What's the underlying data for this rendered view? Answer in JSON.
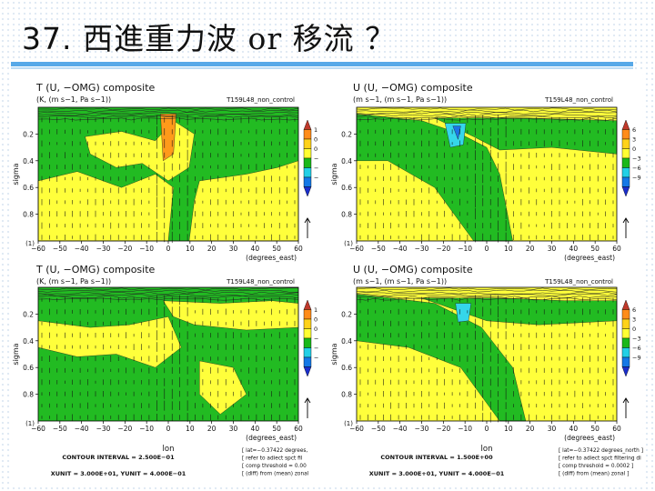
{
  "slide": {
    "title_num": "37.",
    "title_a": "西進重力波",
    "title_or": "or",
    "title_b": "移流 ？"
  },
  "chart_data": [
    {
      "type": "heatmap",
      "title": "T (U, −OMG) composite",
      "subtitle": "(K, (m s−1, Pa s−1))",
      "run": "T159L48_non_control",
      "xlabel": "(degrees_east)",
      "ylabel": "sigma",
      "x_ticks": [
        "−60",
        "−50",
        "−40",
        "−30",
        "−20",
        "−10",
        "0",
        "10",
        "20",
        "30",
        "40",
        "50",
        "60"
      ],
      "y_ticks": [
        "0.2",
        "0.4",
        "0.6",
        "0.8"
      ],
      "xlim": [
        -60,
        60
      ],
      "ylim": [
        1.0,
        0.0
      ],
      "colorbar": {
        "labels": [
          "1",
          "0",
          "0",
          "−",
          "−",
          "−"
        ],
        "colors": [
          "#c0392b",
          "#ff8c1a",
          "#ffd21a",
          "#ffff33",
          "#1ab81a",
          "#22d0e6",
          "#1478e6",
          "#1a2ecc"
        ]
      },
      "unit_ref": "(1)",
      "grid": "off",
      "legend": "right"
    },
    {
      "type": "heatmap",
      "title": "U (U, −OMG) composite",
      "subtitle": "(m s−1, (m s−1, Pa s−1))",
      "run": "T159L48_non_control",
      "xlabel": "(degrees_east)",
      "ylabel": "sigma",
      "x_ticks": [
        "−60",
        "−50",
        "−40",
        "−30",
        "−20",
        "−10",
        "0",
        "10",
        "20",
        "30",
        "40",
        "50",
        "60"
      ],
      "y_ticks": [
        "0.2",
        "0.4",
        "0.6",
        "0.8"
      ],
      "xlim": [
        -60,
        60
      ],
      "ylim": [
        1.0,
        0.0
      ],
      "colorbar": {
        "labels": [
          "6",
          "3",
          "0",
          "−3",
          "−6",
          "−9"
        ],
        "colors": [
          "#c0392b",
          "#ff8c1a",
          "#ffd21a",
          "#ffff33",
          "#1ab81a",
          "#22d0e6",
          "#1478e6",
          "#1a2ecc"
        ]
      },
      "unit_ref": "(1)",
      "grid": "off",
      "legend": "right"
    },
    {
      "type": "heatmap",
      "title": "T (U, −OMG) composite",
      "subtitle": "(K, (m s−1, Pa s−1))",
      "run": "T159L48_non_control",
      "xlabel": "(degrees_east)",
      "ylabel": "sigma",
      "x_ticks": [
        "−60",
        "−50",
        "−40",
        "−30",
        "−20",
        "−10",
        "0",
        "10",
        "20",
        "30",
        "40",
        "50",
        "60"
      ],
      "y_ticks": [
        "0.2",
        "0.4",
        "0.6",
        "0.8"
      ],
      "xlim": [
        -60,
        60
      ],
      "ylim": [
        1.0,
        0.0
      ],
      "colorbar": {
        "labels": [
          "1",
          "0",
          "0",
          "−",
          "−",
          "−"
        ],
        "colors": [
          "#c0392b",
          "#ff8c1a",
          "#ffd21a",
          "#ffff33",
          "#1ab81a",
          "#22d0e6",
          "#1478e6",
          "#1a2ecc"
        ]
      },
      "unit_ref": "(1)",
      "lon_label": "lon",
      "grid": "off",
      "legend": "right"
    },
    {
      "type": "heatmap",
      "title": "U (U, −OMG) composite",
      "subtitle": "(m s−1, (m s−1, Pa s−1))",
      "run": "T159L48_non_control",
      "xlabel": "(degrees_east)",
      "ylabel": "sigma",
      "x_ticks": [
        "−60",
        "−50",
        "−40",
        "−30",
        "−20",
        "−10",
        "0",
        "10",
        "20",
        "30",
        "40",
        "50",
        "60"
      ],
      "y_ticks": [
        "0.2",
        "0.4",
        "0.6",
        "0.8"
      ],
      "xlim": [
        -60,
        60
      ],
      "ylim": [
        1.0,
        0.0
      ],
      "colorbar": {
        "labels": [
          "6",
          "3",
          "0",
          "−3",
          "−6",
          "−9"
        ],
        "colors": [
          "#c0392b",
          "#ff8c1a",
          "#ffd21a",
          "#ffff33",
          "#1ab81a",
          "#22d0e6",
          "#1478e6",
          "#1a2ecc"
        ]
      },
      "unit_ref": "(1)",
      "lon_label": "lon",
      "grid": "off",
      "legend": "right"
    }
  ],
  "footers": [
    {
      "contour_interval": "CONTOUR INTERVAL = 2.500E−01",
      "units": "XUNIT = 3.000E+01, YUNIT = 4.000E−01",
      "notes": [
        "[ lat=−0.37422 degrees,",
        "[ refer to adiect spct fil",
        "[ comp threshold = 0.00",
        "[ (diff) from (mean) zonal"
      ]
    },
    {
      "contour_interval": "CONTOUR INTERVAL = 1.500E+00",
      "units": "XUNIT = 3.000E+01, YUNIT = 4.000E−01",
      "notes": [
        "[ lat=−0.37422 degrees_north ]",
        "[ refer to adiect spct filtering di",
        "[ comp threshold = 0.0002 ]",
        "[ (diff) from (mean) zonal ]"
      ]
    }
  ]
}
